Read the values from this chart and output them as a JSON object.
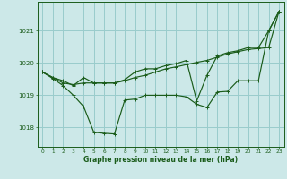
{
  "xlabel": "Graphe pression niveau de la mer (hPa)",
  "background_color": "#cce8e8",
  "grid_color": "#99cccc",
  "line_color": "#1a5c1a",
  "x_ticks": [
    0,
    1,
    2,
    3,
    4,
    5,
    6,
    7,
    8,
    9,
    10,
    11,
    12,
    13,
    14,
    15,
    16,
    17,
    18,
    19,
    20,
    21,
    22,
    23
  ],
  "ylim": [
    1017.4,
    1021.9
  ],
  "yticks": [
    1018,
    1019,
    1020,
    1021
  ],
  "line1": [
    1019.72,
    1019.52,
    1019.3,
    1019.0,
    1018.65,
    1017.85,
    1017.82,
    1017.8,
    1018.85,
    1018.88,
    1019.0,
    1019.0,
    1019.0,
    1019.0,
    1018.95,
    1018.72,
    1018.62,
    1019.1,
    1019.12,
    1019.45,
    1019.45,
    1019.45,
    1021.0,
    1021.6
  ],
  "line2": [
    1019.72,
    1019.55,
    1019.38,
    1019.33,
    1019.38,
    1019.38,
    1019.38,
    1019.38,
    1019.45,
    1019.55,
    1019.62,
    1019.72,
    1019.82,
    1019.88,
    1019.95,
    1020.02,
    1020.08,
    1020.18,
    1020.28,
    1020.35,
    1020.42,
    1020.45,
    1020.48,
    1021.6
  ],
  "line3": [
    1019.72,
    1019.55,
    1019.45,
    1019.3,
    1019.55,
    1019.38,
    1019.38,
    1019.38,
    1019.48,
    1019.72,
    1019.82,
    1019.82,
    1019.92,
    1019.98,
    1020.08,
    1018.82,
    1019.62,
    1020.22,
    1020.32,
    1020.38,
    1020.48,
    1020.48,
    1021.0,
    1021.6
  ]
}
